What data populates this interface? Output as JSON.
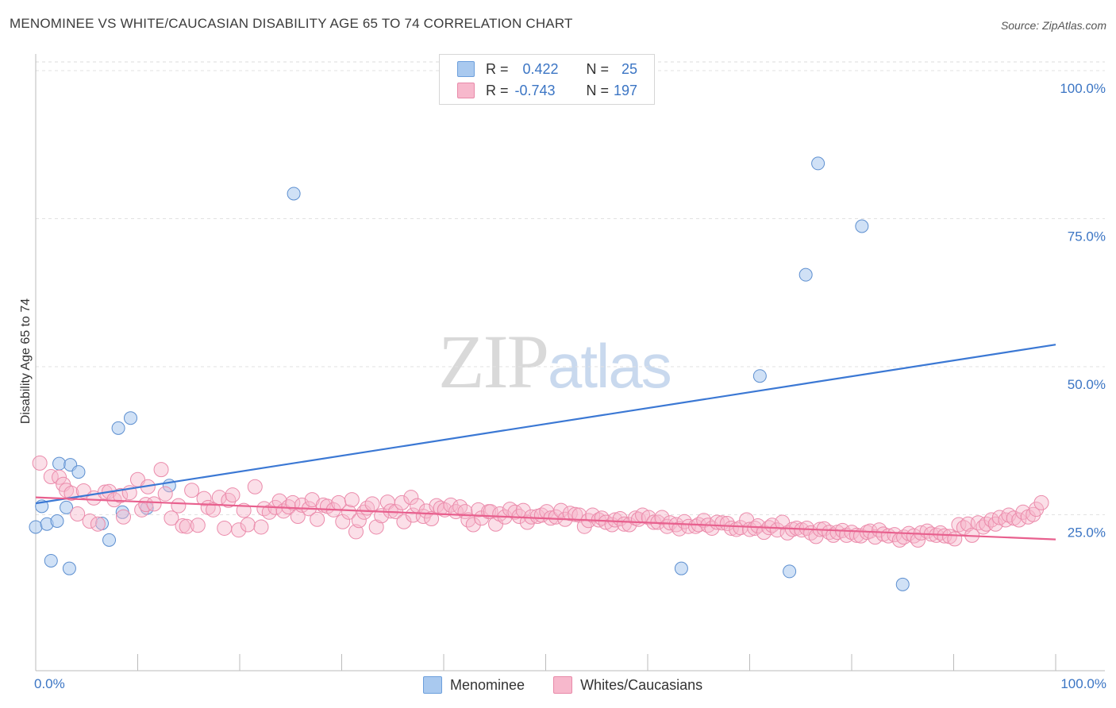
{
  "title": "MENOMINEE VS WHITE/CAUCASIAN DISABILITY AGE 65 TO 74 CORRELATION CHART",
  "source": "Source: ZipAtlas.com",
  "watermark": {
    "zip": "ZIP",
    "atlas": "atlas"
  },
  "legend_box": {
    "rows": [
      {
        "r_label": "R =",
        "r_value": "0.422",
        "n_label": "N =",
        "n_value": "25",
        "color": "#a9c9ef"
      },
      {
        "r_label": "R =",
        "r_value": "-0.743",
        "n_label": "N =",
        "n_value": "197",
        "color": "#f7b8cc"
      }
    ]
  },
  "bottom_legend": {
    "items": [
      {
        "label": "Menominee",
        "color": "#a9c9ef"
      },
      {
        "label": "Whites/Caucasians",
        "color": "#f7b8cc"
      }
    ]
  },
  "chart_data": {
    "type": "scatter",
    "title": "MENOMINEE VS WHITE/CAUCASIAN DISABILITY AGE 65 TO 74 CORRELATION CHART",
    "xlabel": "",
    "ylabel": "Disability Age 65 to 74",
    "xlim": [
      0,
      100
    ],
    "ylim": [
      0,
      100
    ],
    "x_tick_labels": [
      "0.0%",
      "100.0%"
    ],
    "y_tick_labels": [
      "25.0%",
      "50.0%",
      "75.0%",
      "100.0%"
    ],
    "y_ticks": [
      25,
      50,
      75,
      100
    ],
    "grid": "horizontal dashed",
    "legend": "top-center",
    "series": [
      {
        "name": "Menominee",
        "color": "#3b78d4",
        "fill": "#a9c9ef",
        "r": 0.422,
        "n": 25,
        "trend": [
          [
            0,
            28.0
          ],
          [
            100,
            54.8
          ]
        ],
        "points": [
          [
            0.0,
            24.0
          ],
          [
            0.6,
            27.5
          ],
          [
            1.1,
            24.5
          ],
          [
            1.5,
            18.3
          ],
          [
            2.1,
            25.0
          ],
          [
            2.3,
            34.7
          ],
          [
            3.0,
            27.3
          ],
          [
            3.3,
            17.0
          ],
          [
            3.4,
            34.5
          ],
          [
            4.2,
            33.3
          ],
          [
            6.5,
            24.6
          ],
          [
            7.2,
            21.8
          ],
          [
            8.1,
            40.7
          ],
          [
            8.5,
            26.5
          ],
          [
            9.3,
            42.4
          ],
          [
            10.9,
            27.2
          ],
          [
            13.1,
            31.0
          ],
          [
            25.3,
            80.3
          ],
          [
            63.3,
            17.0
          ],
          [
            71.0,
            49.5
          ],
          [
            73.9,
            16.5
          ],
          [
            75.5,
            66.6
          ],
          [
            76.7,
            85.4
          ],
          [
            81.0,
            74.8
          ],
          [
            85.0,
            14.3
          ]
        ]
      },
      {
        "name": "Whites/Caucasians",
        "color": "#e8608e",
        "fill": "#f7b8cc",
        "r": -0.743,
        "n": 197,
        "trend": [
          [
            0,
            29.0
          ],
          [
            100,
            21.9
          ]
        ],
        "points": [
          [
            0.4,
            34.8
          ],
          [
            1.5,
            32.5
          ],
          [
            2.3,
            32.4
          ],
          [
            2.7,
            31.2
          ],
          [
            3.0,
            30.2
          ],
          [
            3.5,
            29.7
          ],
          [
            4.1,
            26.2
          ],
          [
            4.7,
            30.1
          ],
          [
            5.3,
            25.0
          ],
          [
            5.7,
            28.9
          ],
          [
            6.1,
            24.5
          ],
          [
            6.8,
            29.9
          ],
          [
            7.2,
            30.0
          ],
          [
            7.7,
            28.6
          ],
          [
            8.3,
            29.3
          ],
          [
            8.6,
            25.7
          ],
          [
            9.2,
            29.8
          ],
          [
            10.0,
            32.0
          ],
          [
            10.4,
            26.9
          ],
          [
            10.8,
            27.8
          ],
          [
            11.0,
            30.8
          ],
          [
            11.6,
            27.9
          ],
          [
            12.3,
            33.7
          ],
          [
            12.7,
            29.6
          ],
          [
            13.3,
            25.5
          ],
          [
            14.0,
            27.6
          ],
          [
            14.4,
            24.2
          ],
          [
            14.8,
            24.1
          ],
          [
            15.3,
            30.2
          ],
          [
            15.9,
            24.3
          ],
          [
            16.5,
            28.8
          ],
          [
            16.9,
            27.3
          ],
          [
            17.4,
            26.9
          ],
          [
            18.0,
            29.0
          ],
          [
            18.5,
            23.8
          ],
          [
            18.9,
            28.5
          ],
          [
            19.3,
            29.4
          ],
          [
            19.9,
            23.5
          ],
          [
            20.4,
            26.8
          ],
          [
            20.8,
            24.4
          ],
          [
            21.5,
            30.8
          ],
          [
            22.1,
            24.0
          ],
          [
            22.4,
            27.1
          ],
          [
            22.9,
            26.5
          ],
          [
            23.5,
            27.3
          ],
          [
            23.9,
            28.4
          ],
          [
            24.3,
            26.7
          ],
          [
            24.8,
            27.4
          ],
          [
            25.2,
            28.1
          ],
          [
            25.7,
            25.8
          ],
          [
            26.1,
            27.7
          ],
          [
            26.8,
            27.1
          ],
          [
            27.1,
            28.6
          ],
          [
            27.6,
            25.3
          ],
          [
            28.2,
            27.7
          ],
          [
            28.6,
            27.5
          ],
          [
            29.2,
            26.9
          ],
          [
            29.7,
            28.1
          ],
          [
            30.1,
            24.9
          ],
          [
            30.7,
            26.5
          ],
          [
            31.0,
            28.6
          ],
          [
            31.4,
            23.2
          ],
          [
            31.7,
            25.1
          ],
          [
            32.2,
            26.5
          ],
          [
            32.5,
            27.2
          ],
          [
            33.0,
            27.9
          ],
          [
            33.4,
            24.0
          ],
          [
            33.9,
            25.9
          ],
          [
            34.5,
            28.2
          ],
          [
            34.8,
            26.7
          ],
          [
            35.3,
            26.6
          ],
          [
            35.9,
            28.1
          ],
          [
            36.1,
            24.9
          ],
          [
            36.8,
            29.0
          ],
          [
            37.0,
            26.0
          ],
          [
            37.4,
            27.6
          ],
          [
            38.0,
            25.8
          ],
          [
            38.3,
            26.7
          ],
          [
            38.8,
            25.4
          ],
          [
            39.3,
            27.6
          ],
          [
            39.7,
            27.2
          ],
          [
            40.1,
            26.9
          ],
          [
            40.7,
            27.7
          ],
          [
            41.2,
            26.6
          ],
          [
            41.6,
            27.4
          ],
          [
            42.1,
            26.6
          ],
          [
            42.4,
            25.2
          ],
          [
            42.9,
            24.4
          ],
          [
            43.4,
            26.9
          ],
          [
            43.7,
            25.5
          ],
          [
            44.4,
            26.6
          ],
          [
            44.6,
            26.6
          ],
          [
            45.1,
            24.5
          ],
          [
            45.5,
            26.2
          ],
          [
            46.0,
            25.7
          ],
          [
            46.5,
            27.0
          ],
          [
            47.0,
            26.5
          ],
          [
            47.4,
            25.8
          ],
          [
            47.8,
            26.8
          ],
          [
            48.2,
            24.8
          ],
          [
            48.6,
            25.7
          ],
          [
            49.2,
            25.8
          ],
          [
            49.6,
            26.0
          ],
          [
            50.1,
            26.6
          ],
          [
            50.5,
            25.5
          ],
          [
            51.0,
            25.7
          ],
          [
            51.5,
            26.8
          ],
          [
            51.9,
            25.3
          ],
          [
            52.4,
            26.3
          ],
          [
            52.9,
            26.1
          ],
          [
            53.3,
            26.0
          ],
          [
            53.8,
            24.1
          ],
          [
            54.2,
            25.1
          ],
          [
            54.6,
            26.0
          ],
          [
            55.2,
            25.2
          ],
          [
            55.5,
            25.5
          ],
          [
            55.9,
            24.8
          ],
          [
            56.5,
            24.4
          ],
          [
            56.8,
            25.2
          ],
          [
            57.3,
            25.4
          ],
          [
            57.7,
            24.5
          ],
          [
            58.2,
            24.4
          ],
          [
            58.8,
            25.5
          ],
          [
            59.1,
            25.3
          ],
          [
            59.5,
            26.0
          ],
          [
            60.1,
            25.6
          ],
          [
            60.6,
            24.8
          ],
          [
            61.0,
            24.8
          ],
          [
            61.4,
            25.6
          ],
          [
            61.9,
            24.1
          ],
          [
            62.2,
            24.7
          ],
          [
            62.8,
            24.4
          ],
          [
            63.1,
            23.7
          ],
          [
            63.6,
            24.9
          ],
          [
            64.0,
            24.1
          ],
          [
            64.7,
            24.1
          ],
          [
            65.0,
            24.4
          ],
          [
            65.5,
            25.1
          ],
          [
            65.9,
            24.3
          ],
          [
            66.3,
            23.8
          ],
          [
            66.8,
            24.8
          ],
          [
            67.3,
            24.7
          ],
          [
            67.8,
            24.6
          ],
          [
            68.2,
            23.8
          ],
          [
            68.7,
            23.6
          ],
          [
            69.1,
            23.9
          ],
          [
            69.7,
            25.2
          ],
          [
            70.0,
            23.6
          ],
          [
            70.5,
            23.8
          ],
          [
            70.8,
            24.2
          ],
          [
            71.4,
            23.1
          ],
          [
            71.9,
            23.9
          ],
          [
            72.2,
            24.3
          ],
          [
            72.7,
            23.5
          ],
          [
            73.2,
            24.8
          ],
          [
            73.7,
            23.0
          ],
          [
            74.2,
            23.6
          ],
          [
            74.6,
            23.8
          ],
          [
            75.1,
            23.5
          ],
          [
            75.6,
            23.8
          ],
          [
            76.0,
            23.0
          ],
          [
            76.5,
            22.4
          ],
          [
            76.9,
            23.6
          ],
          [
            77.3,
            23.7
          ],
          [
            77.8,
            23.1
          ],
          [
            78.2,
            22.6
          ],
          [
            78.6,
            23.1
          ],
          [
            79.1,
            23.4
          ],
          [
            79.5,
            22.6
          ],
          [
            80.0,
            23.1
          ],
          [
            80.5,
            22.6
          ],
          [
            80.9,
            22.5
          ],
          [
            81.5,
            23.1
          ],
          [
            81.8,
            23.3
          ],
          [
            82.3,
            22.3
          ],
          [
            82.7,
            23.5
          ],
          [
            83.1,
            22.8
          ],
          [
            83.6,
            22.5
          ],
          [
            84.2,
            22.7
          ],
          [
            84.7,
            21.8
          ],
          [
            85.1,
            22.3
          ],
          [
            85.6,
            22.9
          ],
          [
            86.1,
            22.5
          ],
          [
            86.5,
            21.8
          ],
          [
            86.8,
            23.0
          ],
          [
            87.4,
            23.3
          ],
          [
            87.8,
            22.8
          ],
          [
            88.3,
            22.6
          ],
          [
            88.7,
            23.0
          ],
          [
            89.1,
            22.5
          ],
          [
            89.6,
            22.4
          ],
          [
            90.1,
            22.0
          ],
          [
            90.5,
            24.4
          ],
          [
            91.0,
            23.9
          ],
          [
            91.4,
            24.5
          ],
          [
            91.8,
            22.6
          ],
          [
            92.4,
            24.7
          ],
          [
            92.9,
            24.0
          ],
          [
            93.2,
            24.5
          ],
          [
            93.7,
            25.2
          ],
          [
            94.1,
            24.5
          ],
          [
            94.5,
            25.6
          ],
          [
            95.1,
            25.2
          ],
          [
            95.4,
            26.0
          ],
          [
            95.9,
            25.5
          ],
          [
            96.4,
            25.2
          ],
          [
            96.8,
            26.5
          ],
          [
            97.3,
            25.7
          ],
          [
            97.8,
            26.1
          ],
          [
            98.1,
            27.0
          ],
          [
            98.6,
            28.1
          ]
        ]
      }
    ]
  }
}
